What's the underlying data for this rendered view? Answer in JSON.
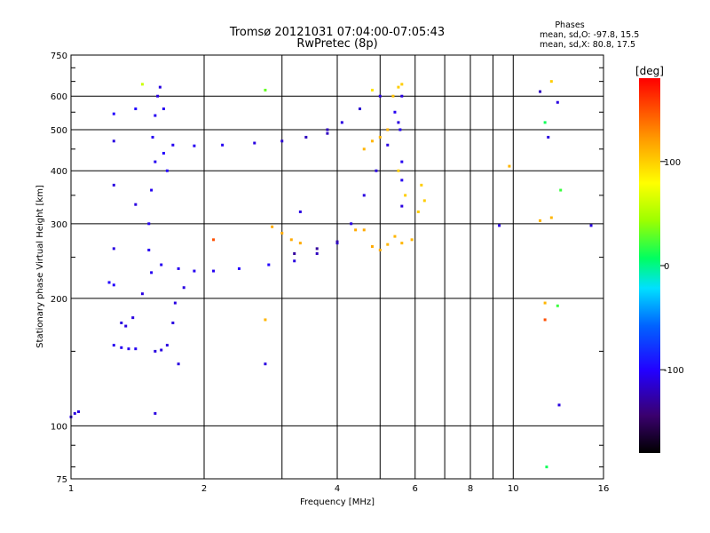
{
  "chart_data": {
    "type": "scatter",
    "title": "Tromsø 20121031 07:04:00-07:05:43",
    "subtitle": "RwPretec (8p)",
    "phases_header": "Phases",
    "phases_stats": [
      "mean, sd,O: -97.8, 15.5",
      "mean, sd,X:  80.8, 17.5"
    ],
    "xlabel": "Frequency [MHz]",
    "ylabel": "Stationary phase Virtual Height [km]",
    "x_scale": "log",
    "y_scale": "log",
    "xlim": [
      1,
      16
    ],
    "ylim": [
      75,
      750
    ],
    "x_ticks": [
      1,
      2,
      4,
      6,
      8,
      10,
      16
    ],
    "x_tick_labels": [
      "1",
      "2",
      "4",
      "6",
      "8",
      "10",
      "16"
    ],
    "y_ticks": [
      75,
      100,
      200,
      300,
      400,
      500,
      600,
      750
    ],
    "y_tick_labels": [
      "75",
      "100",
      "200",
      "300",
      "400",
      "500",
      "600",
      "750"
    ],
    "grid": true,
    "colorbar": {
      "label": "[deg]",
      "range": [
        -180,
        180
      ],
      "ticks": [
        100,
        0,
        -100
      ],
      "tick_labels": [
        "100",
        "0",
        "-100"
      ]
    },
    "series": [
      {
        "points": [
          [
            1.0,
            105,
            -110
          ],
          [
            1.02,
            107,
            -110
          ],
          [
            1.04,
            108,
            -110
          ],
          [
            1.25,
            155,
            -105
          ],
          [
            1.3,
            153,
            -105
          ],
          [
            1.35,
            152,
            -105
          ],
          [
            1.4,
            152,
            -105
          ],
          [
            1.3,
            175,
            -110
          ],
          [
            1.38,
            180,
            -110
          ],
          [
            1.33,
            172,
            -110
          ],
          [
            1.25,
            215,
            -100
          ],
          [
            1.22,
            218,
            -100
          ],
          [
            1.55,
            150,
            -110
          ],
          [
            1.6,
            151,
            -110
          ],
          [
            1.65,
            155,
            -110
          ],
          [
            1.7,
            175,
            -110
          ],
          [
            1.72,
            195,
            -110
          ],
          [
            1.52,
            230,
            -105
          ],
          [
            1.5,
            260,
            -105
          ],
          [
            1.5,
            300,
            -105
          ],
          [
            1.52,
            360,
            -105
          ],
          [
            1.55,
            420,
            -105
          ],
          [
            1.53,
            480,
            -105
          ],
          [
            1.55,
            540,
            -105
          ],
          [
            1.57,
            600,
            -110
          ],
          [
            1.59,
            630,
            -110
          ],
          [
            1.62,
            560,
            -105
          ],
          [
            1.62,
            440,
            -100
          ],
          [
            1.65,
            400,
            -100
          ],
          [
            1.6,
            240,
            -105
          ],
          [
            1.75,
            235,
            -105
          ],
          [
            1.9,
            232,
            -105
          ],
          [
            2.1,
            232,
            -105
          ],
          [
            2.4,
            235,
            -100
          ],
          [
            2.8,
            240,
            -100
          ],
          [
            3.2,
            245,
            -110
          ],
          [
            3.6,
            255,
            -120
          ],
          [
            4.0,
            270,
            -115
          ],
          [
            4.3,
            300,
            -110
          ],
          [
            4.6,
            350,
            -110
          ],
          [
            4.9,
            400,
            -110
          ],
          [
            5.2,
            460,
            -110
          ],
          [
            5.5,
            520,
            -110
          ],
          [
            5.6,
            600,
            -110
          ],
          [
            5.4,
            550,
            -105
          ],
          [
            5.0,
            600,
            -110
          ],
          [
            4.5,
            560,
            -115
          ],
          [
            4.1,
            520,
            -110
          ],
          [
            3.8,
            500,
            -120
          ],
          [
            1.7,
            460,
            -105
          ],
          [
            1.9,
            458,
            -105
          ],
          [
            2.2,
            460,
            -105
          ],
          [
            2.6,
            465,
            -110
          ],
          [
            3.0,
            470,
            -115
          ],
          [
            3.4,
            480,
            -120
          ],
          [
            3.8,
            490,
            -120
          ],
          [
            3.2,
            255,
            -130
          ],
          [
            3.6,
            262,
            -130
          ],
          [
            4.0,
            272,
            -125
          ],
          [
            5.6,
            330,
            -110
          ],
          [
            5.6,
            420,
            -105
          ],
          [
            5.55,
            500,
            -105
          ],
          [
            5.6,
            380,
            -105
          ],
          [
            4.6,
            450,
            110
          ],
          [
            4.8,
            470,
            110
          ],
          [
            5.0,
            480,
            110
          ],
          [
            5.2,
            500,
            110
          ],
          [
            5.5,
            630,
            100
          ],
          [
            5.35,
            600,
            105
          ],
          [
            5.6,
            640,
            100
          ],
          [
            5.5,
            400,
            100
          ],
          [
            5.7,
            350,
            100
          ],
          [
            6.1,
            320,
            100
          ],
          [
            6.3,
            340,
            100
          ],
          [
            6.2,
            370,
            100
          ],
          [
            5.4,
            280,
            110
          ],
          [
            5.6,
            270,
            110
          ],
          [
            5.9,
            275,
            110
          ],
          [
            2.85,
            295,
            115
          ],
          [
            3.0,
            285,
            115
          ],
          [
            3.15,
            275,
            115
          ],
          [
            3.3,
            270,
            115
          ],
          [
            4.8,
            265,
            115
          ],
          [
            5.0,
            260,
            115
          ],
          [
            5.2,
            268,
            110
          ],
          [
            4.6,
            290,
            115
          ],
          [
            4.4,
            290,
            115
          ],
          [
            1.45,
            640,
            60
          ],
          [
            2.75,
            620,
            30
          ],
          [
            4.8,
            620,
            90
          ],
          [
            11.5,
            615,
            -120
          ],
          [
            12.2,
            650,
            100
          ],
          [
            11.8,
            520,
            10
          ],
          [
            12.0,
            480,
            -110
          ],
          [
            12.6,
            580,
            -110
          ],
          [
            12.8,
            360,
            20
          ],
          [
            12.2,
            310,
            110
          ],
          [
            11.5,
            305,
            110
          ],
          [
            15.0,
            297,
            -110
          ],
          [
            9.8,
            410,
            110
          ],
          [
            9.3,
            297,
            -110
          ],
          [
            12.6,
            192,
            20
          ],
          [
            11.8,
            195,
            110
          ],
          [
            11.8,
            178,
            150
          ],
          [
            12.7,
            112,
            -110
          ],
          [
            11.9,
            80,
            10
          ],
          [
            1.25,
            370,
            -110
          ],
          [
            1.4,
            333,
            -110
          ],
          [
            1.4,
            560,
            -100
          ],
          [
            1.25,
            545,
            -100
          ],
          [
            1.25,
            470,
            -110
          ],
          [
            1.25,
            262,
            -110
          ],
          [
            1.45,
            205,
            -110
          ],
          [
            1.55,
            107,
            -110
          ],
          [
            1.75,
            140,
            -110
          ],
          [
            1.8,
            212,
            -110
          ],
          [
            2.75,
            178,
            110
          ],
          [
            2.75,
            140,
            -110
          ],
          [
            2.1,
            275,
            150
          ],
          [
            3.3,
            320,
            -110
          ]
        ]
      }
    ]
  }
}
